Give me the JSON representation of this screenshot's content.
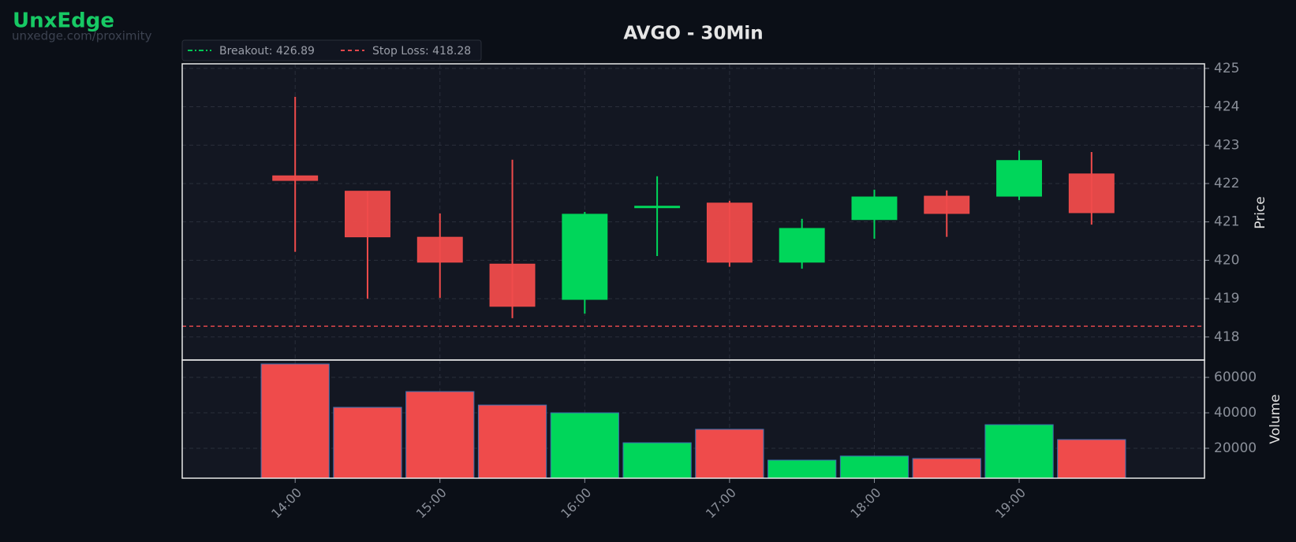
{
  "watermark": {
    "brand": "UnxEdge",
    "url": "unxedge.com/proximity"
  },
  "chart_data": {
    "type": "candlestick",
    "title": "AVGO - 30Min",
    "x": [
      14,
      14.5,
      15,
      15.5,
      16,
      16.5,
      17,
      17.5,
      18,
      18.5,
      19,
      19.5
    ],
    "xlim": [
      13.22,
      20.28
    ],
    "xticks": [
      {
        "value": 14,
        "label": "14:00"
      },
      {
        "value": 15,
        "label": "15:00"
      },
      {
        "value": 16,
        "label": "16:00"
      },
      {
        "value": 17,
        "label": "17:00"
      },
      {
        "value": 18,
        "label": "18:00"
      },
      {
        "value": 19,
        "label": "19:00"
      }
    ],
    "open": [
      422.2,
      421.8,
      420.6,
      419.9,
      418.98,
      421.37,
      421.49,
      419.95,
      421.06,
      421.67,
      421.67,
      422.25
    ],
    "high": [
      424.26,
      421.8,
      421.22,
      422.62,
      421.26,
      422.19,
      421.55,
      421.08,
      421.84,
      421.82,
      422.86,
      422.82
    ],
    "low": [
      420.22,
      419.0,
      419.02,
      418.49,
      418.61,
      420.11,
      419.83,
      419.78,
      420.56,
      420.61,
      421.57,
      420.93
    ],
    "close": [
      422.08,
      420.61,
      419.95,
      418.8,
      421.2,
      421.41,
      419.95,
      420.83,
      421.65,
      421.22,
      422.6,
      421.24
    ],
    "up_color": "#00d65a",
    "down_color": "#ef4b4b",
    "ylabel": "Price",
    "ylim": [
      417.4,
      425.12
    ],
    "yticks": [
      418,
      419,
      420,
      421,
      422,
      423,
      424,
      425
    ],
    "grid": true,
    "levels": [
      {
        "label": "Breakout: 426.89",
        "value": 426.89,
        "color": "#00c853",
        "dash": "6 3 2 3"
      },
      {
        "label": "Stop Loss: 418.28",
        "value": 418.28,
        "color": "#e0474c",
        "dash": "5 4"
      }
    ],
    "volume": {
      "label": "Volume",
      "values": [
        67600,
        43100,
        52000,
        44400,
        40000,
        23100,
        30700,
        13300,
        15600,
        14200,
        33300,
        24900
      ],
      "ylim": [
        3100,
        69800
      ],
      "yticks": [
        20000,
        40000,
        60000
      ],
      "edge_color": "#3b6fb0"
    }
  }
}
